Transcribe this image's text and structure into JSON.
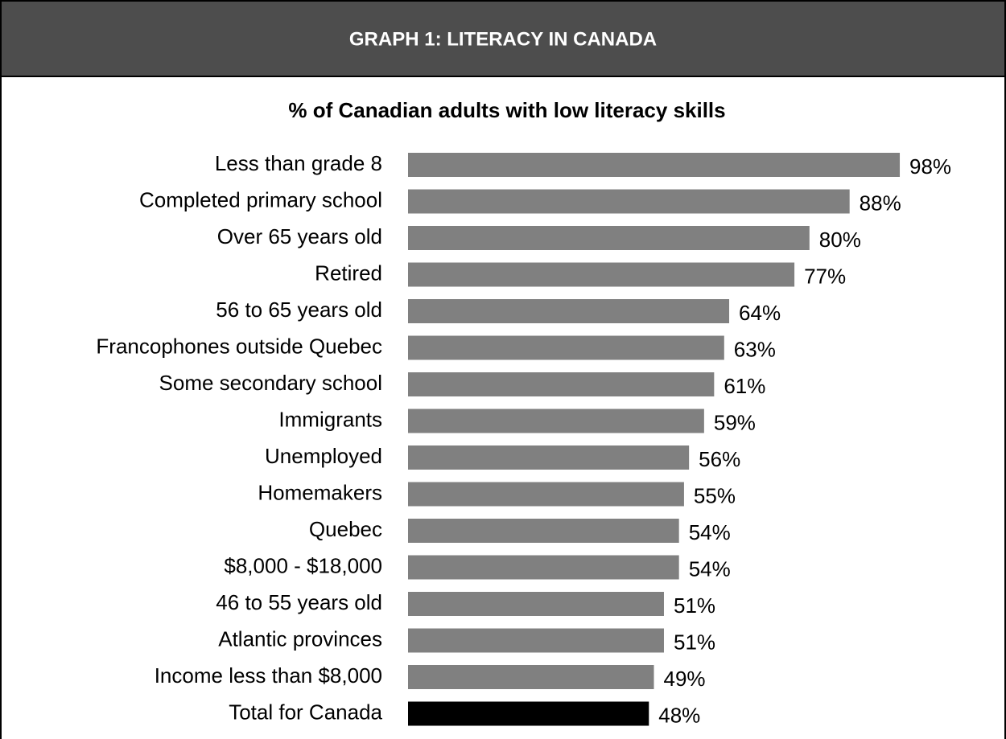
{
  "chart_data": {
    "type": "bar",
    "orientation": "horizontal",
    "header": "GRAPH 1: LITERACY IN CANADA",
    "title": "% of Canadian adults with low literacy skills",
    "categories": [
      "Less than grade 8",
      "Completed primary school",
      "Over 65 years old",
      "Retired",
      "56 to 65 years old",
      "Francophones outside Quebec",
      "Some secondary school",
      "Immigrants",
      "Unemployed",
      "Homemakers",
      "Quebec",
      "$8,000 - $18,000",
      "46 to 55 years old",
      "Atlantic provinces",
      "Income less than $8,000",
      "Total for Canada"
    ],
    "values": [
      98,
      88,
      80,
      77,
      64,
      63,
      61,
      59,
      56,
      55,
      54,
      54,
      51,
      51,
      49,
      48
    ],
    "value_labels": [
      "98%",
      "88%",
      "80%",
      "77%",
      "64%",
      "63%",
      "61%",
      "59%",
      "56%",
      "55%",
      "54%",
      "54%",
      "51%",
      "51%",
      "49%",
      "48%"
    ],
    "colors": [
      "#808080",
      "#808080",
      "#808080",
      "#808080",
      "#808080",
      "#808080",
      "#808080",
      "#808080",
      "#808080",
      "#808080",
      "#808080",
      "#808080",
      "#808080",
      "#808080",
      "#808080",
      "#000000"
    ]
  }
}
